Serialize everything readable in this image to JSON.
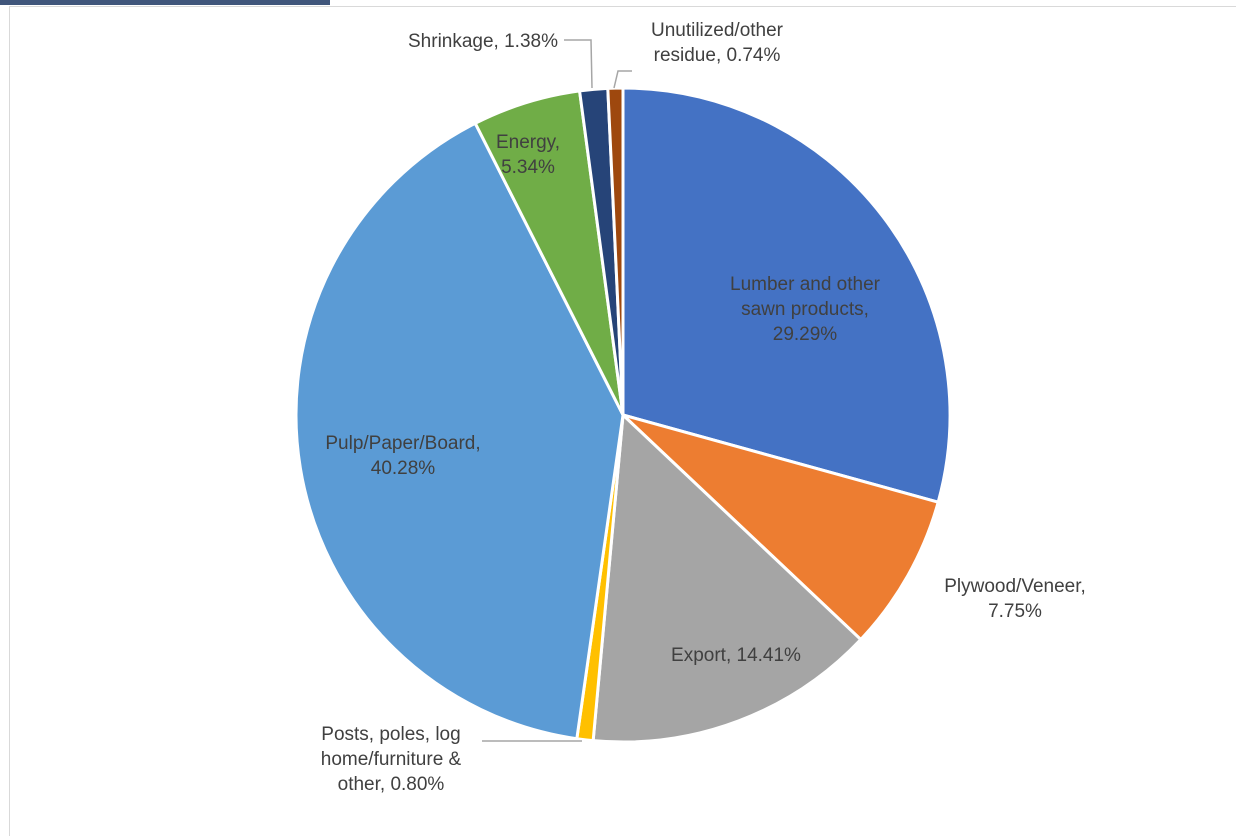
{
  "chart_data": {
    "type": "pie",
    "title": "",
    "legend": "none",
    "slices": [
      {
        "name": "Lumber and other sawn products",
        "value": 29.29,
        "label": "Lumber and other sawn products, 29.29%",
        "label_lines": [
          "Lumber and other",
          "sawn products,",
          "29.29%"
        ],
        "color": "#4472c4"
      },
      {
        "name": "Plywood/Veneer",
        "value": 7.75,
        "label": "Plywood/Veneer, 7.75%",
        "label_lines": [
          "Plywood/Veneer,",
          "7.75%"
        ],
        "color": "#ed7d31"
      },
      {
        "name": "Export",
        "value": 14.41,
        "label": "Export, 14.41%",
        "label_lines": [
          "Export, 14.41%"
        ],
        "color": "#a5a5a5"
      },
      {
        "name": "Posts, poles, log home/furniture & other",
        "value": 0.8,
        "label": "Posts, poles, log home/furniture & other, 0.80%",
        "label_lines": [
          "Posts, poles, log",
          "home/furniture &",
          "other, 0.80%"
        ],
        "color": "#ffc000"
      },
      {
        "name": "Pulp/Paper/Board",
        "value": 40.28,
        "label": "Pulp/Paper/Board, 40.28%",
        "label_lines": [
          "Pulp/Paper/Board,",
          "40.28%"
        ],
        "color": "#5b9bd5"
      },
      {
        "name": "Energy",
        "value": 5.34,
        "label": "Energy, 5.34%",
        "label_lines": [
          "Energy,",
          "5.34%"
        ],
        "color": "#70ad47"
      },
      {
        "name": "Shrinkage",
        "value": 1.38,
        "label": "Shrinkage, 1.38%",
        "label_lines": [
          "Shrinkage, 1.38%"
        ],
        "color": "#264478"
      },
      {
        "name": "Unutilized/other residue",
        "value": 0.74,
        "label": "Unutilized/other residue, 0.74%",
        "label_lines": [
          "Unutilized/other",
          "residue, 0.74%"
        ],
        "color": "#9e480e"
      }
    ]
  }
}
